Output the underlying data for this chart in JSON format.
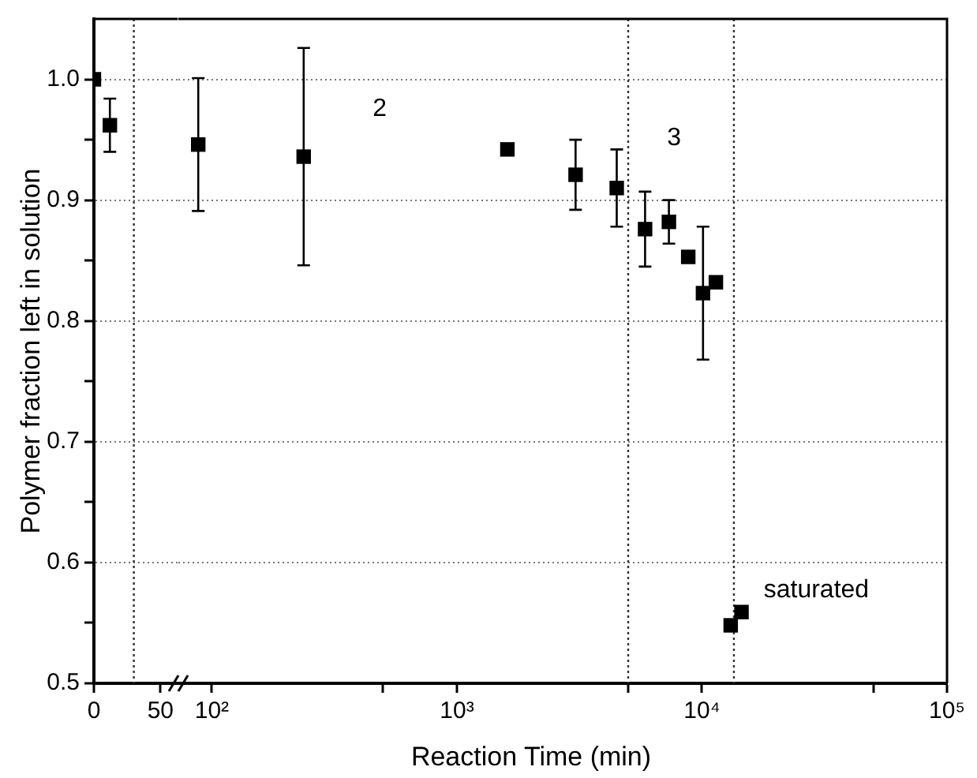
{
  "chart_data": [
    {
      "type": "scatter",
      "ylabel": "Polymer fraction left in solution",
      "xlim": [
        0,
        63
      ],
      "xticks": [
        0,
        50
      ],
      "ylim": [
        0.5,
        1.05
      ],
      "yticks": [
        0.5,
        {
          "value": 0.55,
          "label": null
        },
        0.6,
        {
          "value": 0.65,
          "label": null
        },
        0.7,
        {
          "value": 0.75,
          "label": null
        },
        0.8,
        {
          "value": 0.85,
          "label": null
        },
        0.9,
        {
          "value": 0.95,
          "label": null
        },
        {
          "value": 1,
          "label": "1.0"
        }
      ],
      "grid": "y",
      "legend": false,
      "marker": "square",
      "series": [
        {
          "color": "#000000",
          "x": [
            0
          ],
          "values": [
            1.0
          ]
        },
        {
          "color": "#000000",
          "x": [
            12
          ],
          "values": [
            0.962
          ],
          "errors": [
            0.022
          ]
        }
      ],
      "ref_lines": [
        {
          "axis": "x",
          "value": 30,
          "line_style": "dotted",
          "color": "#333333"
        }
      ]
    },
    {
      "type": "scatter",
      "xlabel": "Reaction Time (min)",
      "xlim": [
        73,
        100000
      ],
      "xticks": [
        {
          "value": 100,
          "label": "10²"
        },
        {
          "value": 500,
          "label": null
        },
        {
          "value": 1000,
          "label": "10³"
        },
        {
          "value": 5000,
          "label": null
        },
        {
          "value": 10000,
          "label": "10⁴"
        },
        {
          "value": 50000,
          "label": null
        },
        {
          "value": 100000,
          "label": "10⁵"
        }
      ],
      "log": "x",
      "ylim": [
        0.5,
        1.05
      ],
      "yticks": [
        0.5,
        0.6,
        0.7,
        0.8,
        0.9,
        1
      ],
      "tick_labels": "x",
      "grid": "y",
      "legend": false,
      "marker": "square",
      "series": [
        {
          "color": "#000000",
          "x": [
            88,
            237,
            3050,
            4490,
            5860,
            7330,
            10100
          ],
          "values": [
            0.946,
            0.936,
            0.921,
            0.91,
            0.876,
            0.882,
            0.823
          ],
          "errors": [
            0.055,
            0.09,
            0.029,
            0.032,
            0.031,
            0.018,
            0.055
          ]
        },
        {
          "color": "#000000",
          "x": [
            1607,
            8790,
            11400,
            13100,
            14500
          ],
          "values": [
            0.942,
            0.853,
            0.832,
            0.548,
            0.559
          ]
        }
      ],
      "ref_lines": [
        {
          "axis": "x",
          "value": 5000,
          "line_style": "dotted",
          "color": "#333333"
        },
        {
          "axis": "x",
          "value": 13500,
          "line_style": "dotted",
          "color": "#333333"
        }
      ],
      "annotations": [
        "2",
        "3",
        "saturated"
      ]
    }
  ]
}
